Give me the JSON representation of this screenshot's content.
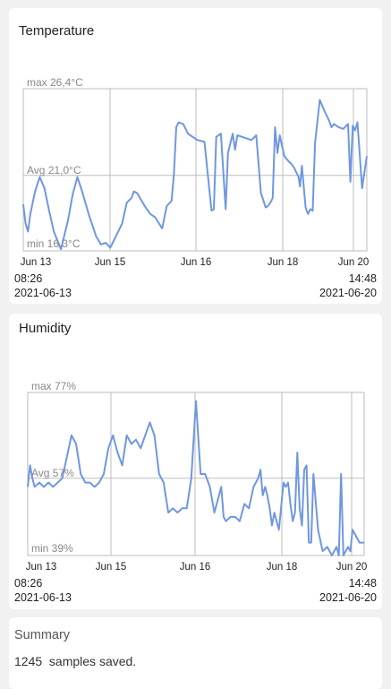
{
  "temperature_card": {
    "title": "Temperature",
    "start_time": "08:26",
    "start_date": "2021-06-13",
    "end_time": "14:48",
    "end_date": "2021-06-20"
  },
  "humidity_card": {
    "title": "Humidity",
    "start_time": "08:26",
    "start_date": "2021-06-13",
    "end_time": "14:48",
    "end_date": "2021-06-20"
  },
  "summary": {
    "title": "Summary",
    "text": "1245  samples saved."
  },
  "colors": {
    "line": "#6f97e0",
    "grid": "#bdbdbd",
    "label": "#888888",
    "card": "#ffffff",
    "background": "#f1f1f1"
  },
  "chart_data": [
    {
      "type": "line",
      "title": "Temperature",
      "x_ticks": [
        "Jun 13",
        "Jun 15",
        "Jun 16",
        "Jun 18",
        "Jun 20"
      ],
      "xlim": [
        0,
        7.3
      ],
      "ylim": [
        16.3,
        26.4
      ],
      "reference_labels": {
        "max": "max 26,4°C",
        "avg": "Avg 21,0°C",
        "min": "min 16,3°C"
      },
      "reference_values": {
        "max": 26.4,
        "avg": 21.0,
        "min": 16.3
      },
      "series": [
        {
          "x": [
            0,
            0.05,
            0.1,
            0.15,
            0.25,
            0.35,
            0.45,
            0.55,
            0.65,
            0.8,
            0.95,
            1.05,
            1.15,
            1.25,
            1.4,
            1.55,
            1.65,
            1.75,
            1.85,
            2.0,
            2.1,
            2.2,
            2.3,
            2.35,
            2.42,
            2.5,
            2.6,
            2.7,
            2.8,
            2.95,
            3.05,
            3.15,
            3.2,
            3.25,
            3.3,
            3.4,
            3.5,
            3.55,
            3.6,
            3.7,
            3.85,
            4.0,
            4.05,
            4.1,
            4.2,
            4.3,
            4.35,
            4.45,
            4.5,
            4.55,
            4.65,
            4.75,
            4.85,
            4.95,
            5.05,
            5.15,
            5.2,
            5.25,
            5.3,
            5.35,
            5.4,
            5.45,
            5.5,
            5.55,
            5.6,
            5.7,
            5.75,
            5.8,
            5.85,
            5.88,
            5.92,
            6.0,
            6.05,
            6.1,
            6.15,
            6.2,
            6.3,
            6.4,
            6.5,
            6.55,
            6.6,
            6.65,
            6.7,
            6.8,
            6.9,
            6.95,
            7.0,
            7.05,
            7.1,
            7.2,
            7.3
          ],
          "y": [
            19.2,
            18.0,
            17.5,
            18.6,
            20.0,
            20.9,
            20.2,
            18.8,
            17.5,
            16.4,
            18.2,
            19.8,
            20.9,
            20.0,
            18.5,
            17.2,
            16.7,
            16.8,
            16.5,
            17.4,
            18.0,
            19.3,
            19.6,
            20.0,
            19.9,
            19.5,
            19.0,
            18.6,
            18.4,
            17.7,
            19.1,
            19.4,
            21.0,
            24.0,
            24.3,
            24.2,
            23.6,
            23.5,
            23.4,
            23.2,
            23.1,
            18.8,
            18.9,
            23.4,
            23.6,
            18.9,
            22.4,
            23.6,
            22.6,
            23.5,
            23.4,
            23.3,
            23.2,
            23.5,
            19.9,
            19.0,
            19.1,
            19.3,
            19.6,
            24.0,
            22.4,
            23.5,
            22.8,
            22.2,
            22.0,
            21.7,
            21.5,
            21.2,
            20.9,
            20.3,
            21.6,
            19.0,
            18.6,
            18.9,
            18.8,
            23.0,
            25.7,
            25.0,
            24.4,
            24.0,
            24.2,
            24.1,
            24.0,
            23.9,
            24.2,
            20.6,
            24.1,
            23.8,
            24.3,
            20.2,
            22.2
          ]
        }
      ]
    },
    {
      "type": "line",
      "title": "Humidity",
      "x_ticks": [
        "Jun 13",
        "Jun 15",
        "Jun 16",
        "Jun 18",
        "Jun 20"
      ],
      "xlim": [
        0,
        7.3
      ],
      "ylim": [
        39,
        77
      ],
      "reference_labels": {
        "max": "max 77%",
        "avg": "Avg 57%",
        "min": "min 39%"
      },
      "reference_values": {
        "max": 77,
        "avg": 57,
        "min": 39
      },
      "series": [
        {
          "x": [
            0,
            0.05,
            0.1,
            0.15,
            0.25,
            0.35,
            0.45,
            0.55,
            0.65,
            0.75,
            0.85,
            0.95,
            1.05,
            1.15,
            1.25,
            1.35,
            1.45,
            1.55,
            1.65,
            1.75,
            1.85,
            1.95,
            2.05,
            2.15,
            2.25,
            2.35,
            2.45,
            2.55,
            2.65,
            2.75,
            2.85,
            2.95,
            3.05,
            3.15,
            3.25,
            3.35,
            3.45,
            3.55,
            3.65,
            3.75,
            3.85,
            3.95,
            4.05,
            4.15,
            4.2,
            4.25,
            4.3,
            4.4,
            4.5,
            4.6,
            4.7,
            4.8,
            4.9,
            5.0,
            5.05,
            5.1,
            5.15,
            5.2,
            5.25,
            5.3,
            5.35,
            5.45,
            5.55,
            5.6,
            5.65,
            5.7,
            5.75,
            5.8,
            5.85,
            5.9,
            5.95,
            6.0,
            6.05,
            6.1,
            6.15,
            6.2,
            6.3,
            6.4,
            6.5,
            6.6,
            6.7,
            6.75,
            6.8,
            6.85,
            6.9,
            6.95,
            7.0,
            7.05,
            7.1,
            7.2,
            7.3
          ],
          "y": [
            55,
            60,
            57,
            55,
            56,
            55,
            56,
            55,
            56,
            57,
            62,
            67,
            65,
            58,
            56,
            56,
            55,
            56,
            58,
            64,
            67,
            63,
            60,
            67,
            65,
            66,
            64,
            67,
            70,
            67,
            58,
            56,
            49,
            50,
            49,
            50,
            50,
            57,
            75,
            58,
            58,
            55,
            49,
            53,
            55,
            48,
            47,
            48,
            48,
            47,
            51,
            50,
            55,
            57,
            59,
            53,
            55,
            53,
            50,
            46,
            49,
            45,
            56,
            55,
            56,
            51,
            47,
            49,
            63,
            50,
            46,
            59,
            60,
            42,
            42,
            58,
            45,
            40,
            41,
            39,
            41,
            39,
            58,
            39,
            40,
            41,
            40,
            45,
            44,
            42,
            42
          ]
        }
      ]
    }
  ]
}
